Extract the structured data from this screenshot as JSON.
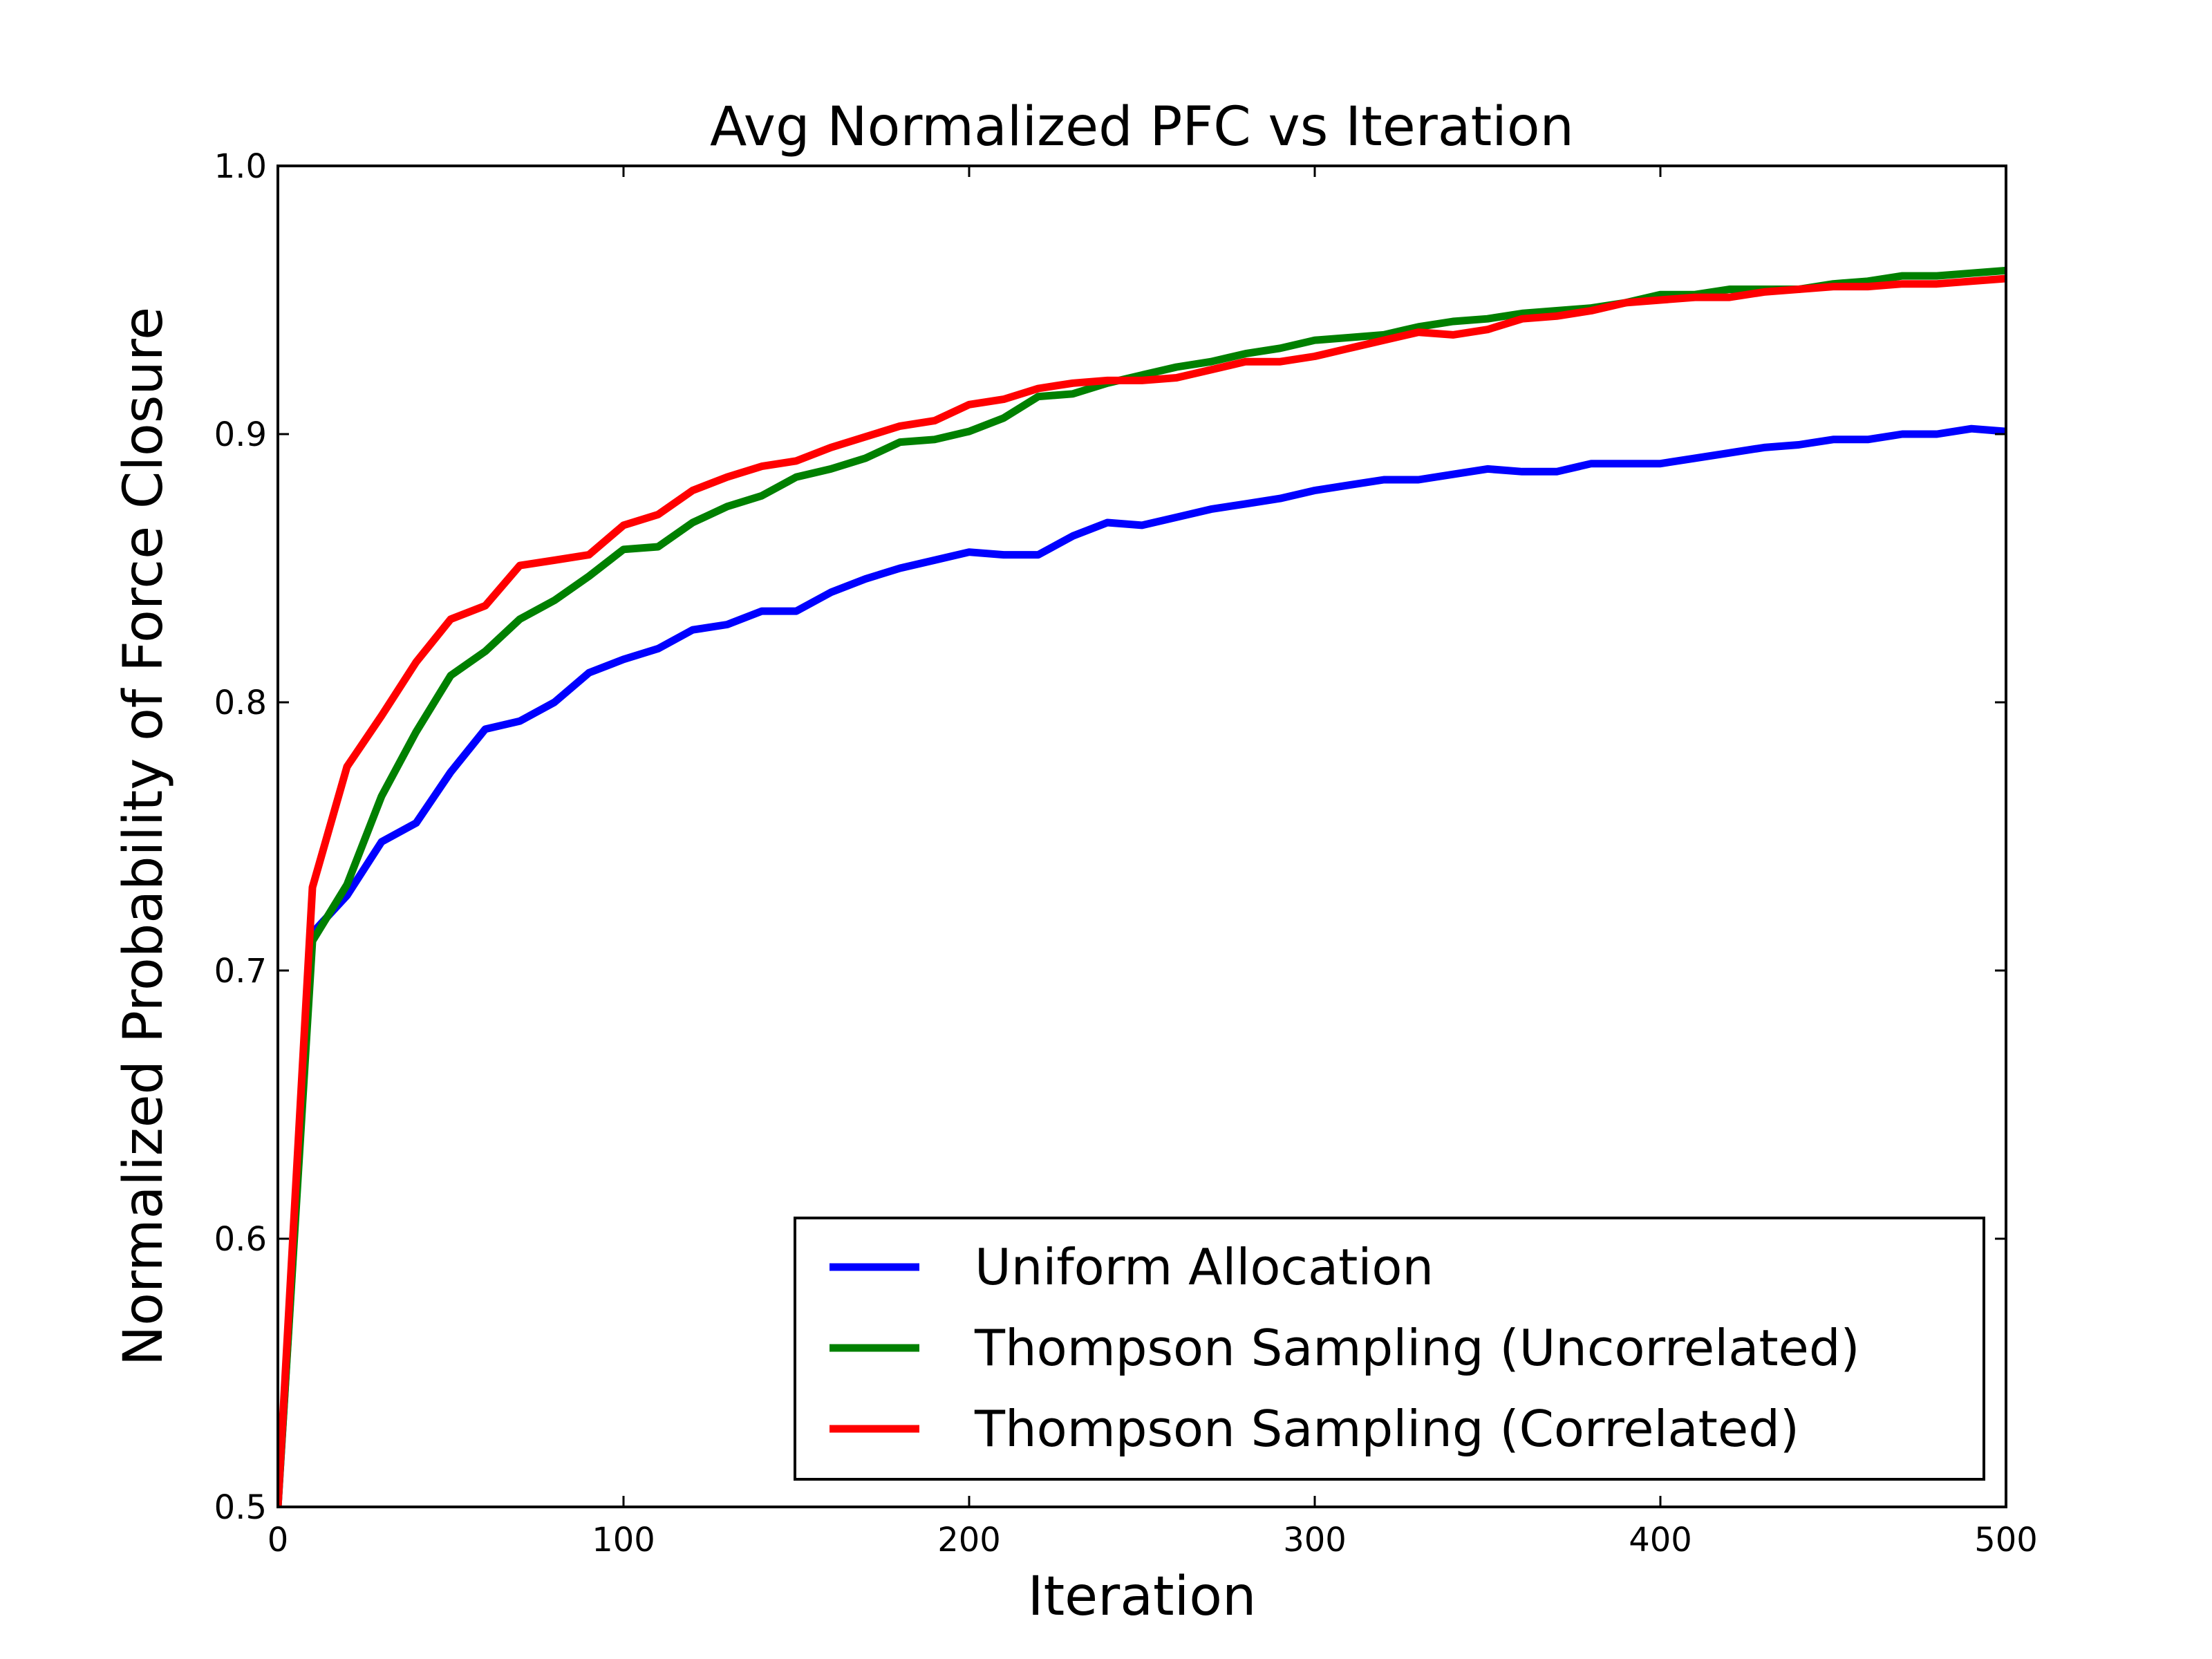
{
  "chart_data": {
    "type": "line",
    "title": "Avg Normalized PFC vs Iteration",
    "xlabel": "Iteration",
    "ylabel": "Normalized Probability of Force Closure",
    "xlim": [
      0,
      500
    ],
    "ylim": [
      0.5,
      1.0
    ],
    "xticks": [
      "0",
      "100",
      "200",
      "300",
      "400",
      "500"
    ],
    "yticks": [
      "0.5",
      "0.6",
      "0.7",
      "0.8",
      "0.9",
      "1.0"
    ],
    "grid": false,
    "legend_position": "lower-right",
    "x": [
      0,
      10,
      20,
      30,
      40,
      50,
      60,
      70,
      80,
      90,
      100,
      110,
      120,
      130,
      140,
      150,
      160,
      170,
      180,
      190,
      200,
      210,
      220,
      230,
      240,
      250,
      260,
      270,
      280,
      290,
      300,
      310,
      320,
      330,
      340,
      350,
      360,
      370,
      380,
      390,
      400,
      410,
      420,
      430,
      440,
      450,
      460,
      470,
      480,
      490,
      500
    ],
    "series": [
      {
        "name": "Uniform Allocation",
        "color": "#0000ff",
        "values": [
          0.5,
          0.714,
          0.728,
          0.748,
          0.755,
          0.774,
          0.79,
          0.793,
          0.8,
          0.811,
          0.816,
          0.82,
          0.827,
          0.829,
          0.834,
          0.834,
          0.841,
          0.846,
          0.85,
          0.853,
          0.856,
          0.855,
          0.855,
          0.862,
          0.867,
          0.866,
          0.869,
          0.872,
          0.874,
          0.876,
          0.879,
          0.881,
          0.883,
          0.883,
          0.885,
          0.887,
          0.886,
          0.886,
          0.889,
          0.889,
          0.889,
          0.891,
          0.893,
          0.895,
          0.896,
          0.898,
          0.898,
          0.9,
          0.9,
          0.902,
          0.901
        ]
      },
      {
        "name": "Thompson Sampling (Uncorrelated)",
        "color": "#008000",
        "values": [
          0.5,
          0.711,
          0.732,
          0.765,
          0.789,
          0.81,
          0.819,
          0.831,
          0.838,
          0.847,
          0.857,
          0.858,
          0.867,
          0.873,
          0.877,
          0.884,
          0.887,
          0.891,
          0.897,
          0.898,
          0.901,
          0.906,
          0.914,
          0.915,
          0.919,
          0.922,
          0.925,
          0.927,
          0.93,
          0.932,
          0.935,
          0.936,
          0.937,
          0.94,
          0.942,
          0.943,
          0.945,
          0.946,
          0.947,
          0.949,
          0.952,
          0.952,
          0.954,
          0.954,
          0.954,
          0.956,
          0.957,
          0.959,
          0.959,
          0.96,
          0.961
        ]
      },
      {
        "name": "Thompson Sampling (Correlated)",
        "color": "#ff0000",
        "values": [
          0.5,
          0.731,
          0.776,
          0.795,
          0.815,
          0.831,
          0.836,
          0.851,
          0.853,
          0.855,
          0.866,
          0.87,
          0.879,
          0.884,
          0.888,
          0.89,
          0.895,
          0.899,
          0.903,
          0.905,
          0.911,
          0.913,
          0.917,
          0.919,
          0.92,
          0.92,
          0.921,
          0.924,
          0.927,
          0.927,
          0.929,
          0.932,
          0.935,
          0.938,
          0.937,
          0.939,
          0.943,
          0.944,
          0.946,
          0.949,
          0.95,
          0.951,
          0.951,
          0.953,
          0.954,
          0.955,
          0.955,
          0.956,
          0.956,
          0.957,
          0.958
        ]
      }
    ]
  }
}
